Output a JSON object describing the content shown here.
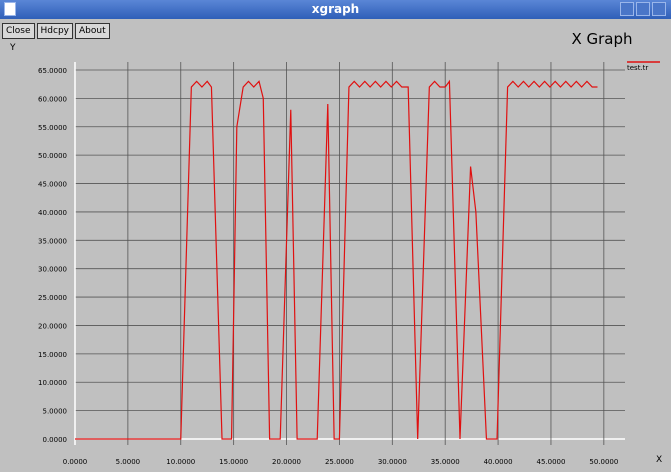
{
  "window_title": "xgraph",
  "buttons": [
    "Close",
    "Hdcpy",
    "About"
  ],
  "chart_data": {
    "type": "line",
    "title": "X Graph",
    "ylabel": "Y",
    "xlabel": "X",
    "grid": true,
    "xlim": [
      0,
      52
    ],
    "ylim": [
      0,
      65
    ],
    "xticks": [
      {
        "value": 0,
        "label": "0.0000"
      },
      {
        "value": 5,
        "label": "5.0000"
      },
      {
        "value": 10,
        "label": "10.0000"
      },
      {
        "value": 15,
        "label": "15.0000"
      },
      {
        "value": 20,
        "label": "20.0000"
      },
      {
        "value": 25,
        "label": "25.0000"
      },
      {
        "value": 30,
        "label": "30.0000"
      },
      {
        "value": 35,
        "label": "35.0000"
      },
      {
        "value": 40,
        "label": "40.0000"
      },
      {
        "value": 45,
        "label": "45.0000"
      },
      {
        "value": 50,
        "label": "50.0000"
      }
    ],
    "yticks": [
      {
        "value": 0,
        "label": "0.0000"
      },
      {
        "value": 5,
        "label": "5.0000"
      },
      {
        "value": 10,
        "label": "10.0000"
      },
      {
        "value": 15,
        "label": "15.0000"
      },
      {
        "value": 20,
        "label": "20.0000"
      },
      {
        "value": 25,
        "label": "25.0000"
      },
      {
        "value": 30,
        "label": "30.0000"
      },
      {
        "value": 35,
        "label": "35.0000"
      },
      {
        "value": 40,
        "label": "40.0000"
      },
      {
        "value": 45,
        "label": "45.0000"
      },
      {
        "value": 50,
        "label": "50.0000"
      },
      {
        "value": 55,
        "label": "55.0000"
      },
      {
        "value": 60,
        "label": "60.0000"
      },
      {
        "value": 65,
        "label": "65.0000"
      }
    ],
    "x": [
      0,
      10,
      11,
      11.5,
      12,
      12.5,
      12.9,
      13.9,
      14.8,
      15.3,
      15.9,
      16.4,
      16.9,
      17.4,
      17.8,
      18.4,
      19.4,
      20.4,
      21,
      22.9,
      23.9,
      24.5,
      25,
      25.9,
      26.4,
      26.9,
      27.4,
      27.9,
      28.4,
      28.9,
      29.4,
      29.9,
      30.4,
      30.9,
      31.5,
      32.4,
      33.5,
      34,
      34.5,
      35,
      35.4,
      36.4,
      37.4,
      37.9,
      38.9,
      39.9,
      40.9,
      41.4,
      41.9,
      42.4,
      42.9,
      43.4,
      43.9,
      44.4,
      44.9,
      45.4,
      45.9,
      46.4,
      46.9,
      47.4,
      47.9,
      48.4,
      48.9,
      49.4
    ],
    "series": [
      {
        "name": "test.tr",
        "color": "#e01010",
        "values": [
          0,
          0,
          62,
          63,
          62,
          63,
          62,
          0,
          0,
          55,
          62,
          63,
          62,
          63,
          60,
          0,
          0,
          58,
          0,
          0,
          59,
          0,
          0,
          62,
          63,
          62,
          63,
          62,
          63,
          62,
          63,
          62,
          63,
          62,
          62,
          0,
          62,
          63,
          62,
          62,
          63,
          0,
          48,
          40,
          0,
          0,
          62,
          63,
          62,
          63,
          62,
          63,
          62,
          63,
          62,
          63,
          62,
          63,
          62,
          63,
          62,
          63,
          62,
          62
        ]
      }
    ]
  }
}
